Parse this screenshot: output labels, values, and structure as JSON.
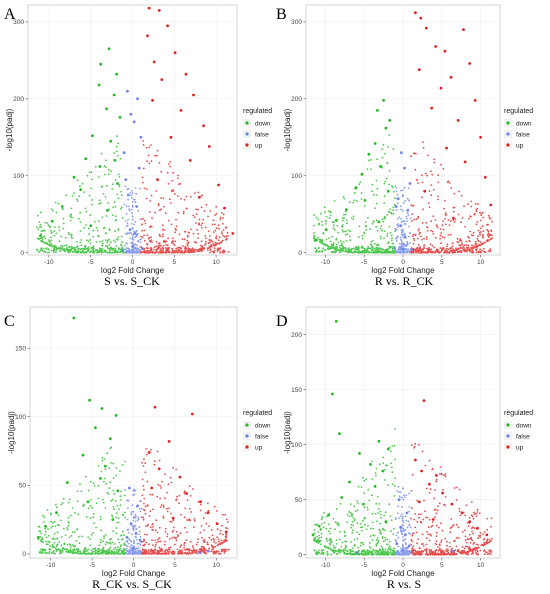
{
  "figure": {
    "legend_title": "regulated",
    "legend_labels": [
      "down",
      "false",
      "up"
    ],
    "colors": {
      "down": "#22bb22",
      "false": "#6f86e8",
      "up": "#e02222"
    }
  },
  "chart_data": [
    {
      "type": "scatter",
      "panel": "A",
      "caption": "S vs. S_CK",
      "xlabel": "log2 Fold Change",
      "ylabel": "-log10(padj)",
      "xlim": [
        -12.5,
        12.5
      ],
      "ylim": [
        -3,
        322
      ],
      "xticks": [
        -10,
        -5,
        0,
        5,
        10
      ],
      "yticks": [
        0,
        100,
        200,
        300
      ],
      "series": [
        {
          "name": "down",
          "points": [
            [
              -2.8,
              265
            ],
            [
              -3.8,
              245
            ],
            [
              -1.9,
              232
            ],
            [
              -4.0,
              218
            ],
            [
              -2.2,
              205
            ],
            [
              -3.1,
              187
            ],
            [
              -1.5,
              176
            ],
            [
              -4.8,
              152
            ],
            [
              -2.6,
              145
            ],
            [
              -5.6,
              122
            ],
            [
              -3.9,
              112
            ],
            [
              -7.0,
              98
            ],
            [
              -6.2,
              82
            ],
            [
              -8.4,
              60
            ],
            [
              -9.6,
              41
            ],
            [
              -11.0,
              22
            ],
            [
              -5.0,
              35
            ],
            [
              -3.0,
              55
            ],
            [
              -1.8,
              90
            ],
            [
              -2.1,
              120
            ]
          ]
        },
        {
          "name": "false",
          "points": [
            [
              0,
              8
            ],
            [
              0.3,
              25
            ],
            [
              -0.3,
              30
            ],
            [
              0.5,
              60
            ],
            [
              -0.5,
              75
            ],
            [
              0.8,
              110
            ],
            [
              -0.8,
              95
            ],
            [
              1.0,
              150
            ],
            [
              -1.0,
              130
            ],
            [
              0.2,
              170
            ],
            [
              -0.2,
              180
            ],
            [
              0.6,
              200
            ],
            [
              -0.6,
              210
            ],
            [
              1.2,
              5
            ],
            [
              -1.2,
              3
            ]
          ]
        },
        {
          "name": "up",
          "points": [
            [
              2.0,
              318
            ],
            [
              3.2,
              315
            ],
            [
              4.2,
              295
            ],
            [
              1.8,
              282
            ],
            [
              5.1,
              260
            ],
            [
              2.6,
              248
            ],
            [
              6.4,
              232
            ],
            [
              3.5,
              225
            ],
            [
              7.3,
              205
            ],
            [
              2.4,
              198
            ],
            [
              5.8,
              185
            ],
            [
              8.5,
              165
            ],
            [
              4.6,
              150
            ],
            [
              9.2,
              138
            ],
            [
              6.9,
              120
            ],
            [
              10.3,
              88
            ],
            [
              11.0,
              58
            ],
            [
              3.0,
              95
            ],
            [
              8.0,
              72
            ],
            [
              12.0,
              25
            ]
          ]
        }
      ]
    },
    {
      "type": "scatter",
      "panel": "B",
      "caption": "R vs. R_CK",
      "xlabel": "log2 Fold Change",
      "ylabel": "-log10(padj)",
      "xlim": [
        -12.5,
        12.5
      ],
      "ylim": [
        -3,
        322
      ],
      "xticks": [
        -10,
        -5,
        0,
        5,
        10
      ],
      "yticks": [
        0,
        100,
        200,
        300
      ],
      "series": [
        {
          "name": "down",
          "points": [
            [
              -2.5,
              198
            ],
            [
              -3.3,
              185
            ],
            [
              -1.7,
              172
            ],
            [
              -2.2,
              162
            ],
            [
              -3.6,
              142
            ],
            [
              -4.4,
              128
            ],
            [
              -2.9,
              112
            ],
            [
              -5.3,
              102
            ],
            [
              -6.1,
              84
            ],
            [
              -4.9,
              68
            ],
            [
              -7.3,
              56
            ],
            [
              -8.6,
              42
            ],
            [
              -9.9,
              30
            ],
            [
              -11.3,
              16
            ],
            [
              -3.1,
              40
            ],
            [
              -1.9,
              80
            ]
          ]
        },
        {
          "name": "false",
          "points": [
            [
              0,
              5
            ],
            [
              0.3,
              20
            ],
            [
              -0.3,
              35
            ],
            [
              0.6,
              55
            ],
            [
              -0.6,
              70
            ],
            [
              0.9,
              90
            ],
            [
              -0.9,
              60
            ],
            [
              0.2,
              110
            ],
            [
              -0.2,
              130
            ],
            [
              1.1,
              4
            ],
            [
              -1.1,
              6
            ]
          ]
        },
        {
          "name": "up",
          "points": [
            [
              1.6,
              312
            ],
            [
              2.3,
              305
            ],
            [
              3.0,
              292
            ],
            [
              7.8,
              290
            ],
            [
              4.2,
              268
            ],
            [
              5.4,
              262
            ],
            [
              8.6,
              246
            ],
            [
              2.1,
              238
            ],
            [
              6.2,
              228
            ],
            [
              4.9,
              214
            ],
            [
              9.3,
              198
            ],
            [
              3.7,
              188
            ],
            [
              7.1,
              172
            ],
            [
              10.0,
              150
            ],
            [
              5.6,
              136
            ],
            [
              8.0,
              118
            ],
            [
              10.6,
              98
            ],
            [
              11.3,
              62
            ],
            [
              2.8,
              80
            ],
            [
              6.5,
              45
            ]
          ]
        }
      ]
    },
    {
      "type": "scatter",
      "panel": "C",
      "caption": "R_CK vs. S_CK",
      "xlabel": "log2 Fold Change",
      "ylabel": "-log10(padj)",
      "xlim": [
        -12.5,
        12.5
      ],
      "ylim": [
        -3,
        180
      ],
      "xticks": [
        -10,
        -5,
        0,
        5,
        10
      ],
      "yticks": [
        0,
        50,
        100,
        150
      ],
      "series": [
        {
          "name": "down",
          "points": [
            [
              -7.2,
              172
            ],
            [
              -5.3,
              112
            ],
            [
              -3.8,
              106
            ],
            [
              -2.1,
              101
            ],
            [
              -4.6,
              92
            ],
            [
              -2.8,
              84
            ],
            [
              -6.1,
              72
            ],
            [
              -3.4,
              64
            ],
            [
              -8.0,
              52
            ],
            [
              -1.9,
              46
            ],
            [
              -5.5,
              38
            ],
            [
              -9.3,
              30
            ],
            [
              -10.6,
              20
            ],
            [
              -11.5,
              12
            ],
            [
              -2.5,
              25
            ],
            [
              -4.0,
              55
            ]
          ]
        },
        {
          "name": "false",
          "points": [
            [
              0,
              4
            ],
            [
              0.3,
              15
            ],
            [
              -0.3,
              22
            ],
            [
              0.5,
              35
            ],
            [
              -0.5,
              48
            ],
            [
              0.8,
              10
            ],
            [
              -0.8,
              12
            ],
            [
              9.0,
              2
            ],
            [
              8.0,
              1
            ]
          ]
        },
        {
          "name": "up",
          "points": [
            [
              2.6,
              107
            ],
            [
              7.1,
              102
            ],
            [
              4.3,
              82
            ],
            [
              1.9,
              74
            ],
            [
              3.1,
              62
            ],
            [
              5.6,
              56
            ],
            [
              6.4,
              44
            ],
            [
              8.1,
              38
            ],
            [
              9.0,
              30
            ],
            [
              10.1,
              22
            ],
            [
              11.2,
              16
            ],
            [
              2.2,
              48
            ],
            [
              4.8,
              26
            ]
          ]
        }
      ]
    },
    {
      "type": "scatter",
      "panel": "D",
      "caption": "R vs. S",
      "xlabel": "log2 Fold Change",
      "ylabel": "-log10(padj)",
      "xlim": [
        -12.5,
        12.5
      ],
      "ylim": [
        -3,
        225
      ],
      "xticks": [
        -10,
        -5,
        0,
        5,
        10
      ],
      "yticks": [
        0,
        50,
        100,
        150,
        200
      ],
      "series": [
        {
          "name": "down",
          "points": [
            [
              -8.6,
              212
            ],
            [
              -9.1,
              146
            ],
            [
              -8.2,
              110
            ],
            [
              -3.1,
              103
            ],
            [
              -1.9,
              96
            ],
            [
              -5.6,
              92
            ],
            [
              -4.2,
              82
            ],
            [
              -2.6,
              76
            ],
            [
              -6.9,
              66
            ],
            [
              -3.6,
              62
            ],
            [
              -7.9,
              52
            ],
            [
              -5.1,
              46
            ],
            [
              -9.6,
              36
            ],
            [
              -10.8,
              26
            ],
            [
              -11.6,
              18
            ],
            [
              -2.2,
              30
            ]
          ]
        },
        {
          "name": "false",
          "points": [
            [
              0,
              4
            ],
            [
              0.3,
              18
            ],
            [
              -0.3,
              25
            ],
            [
              0.5,
              38
            ],
            [
              -0.5,
              50
            ],
            [
              0.8,
              8
            ],
            [
              -0.8,
              10
            ],
            [
              6.5,
              3
            ],
            [
              -6.0,
              2
            ]
          ]
        },
        {
          "name": "up",
          "points": [
            [
              2.7,
              140
            ],
            [
              1.6,
              86
            ],
            [
              2.4,
              76
            ],
            [
              4.3,
              72
            ],
            [
              3.4,
              64
            ],
            [
              5.1,
              56
            ],
            [
              6.3,
              46
            ],
            [
              7.6,
              38
            ],
            [
              8.6,
              30
            ],
            [
              9.6,
              24
            ],
            [
              10.8,
              18
            ],
            [
              2.1,
              48
            ],
            [
              3.9,
              32
            ]
          ]
        }
      ]
    }
  ]
}
